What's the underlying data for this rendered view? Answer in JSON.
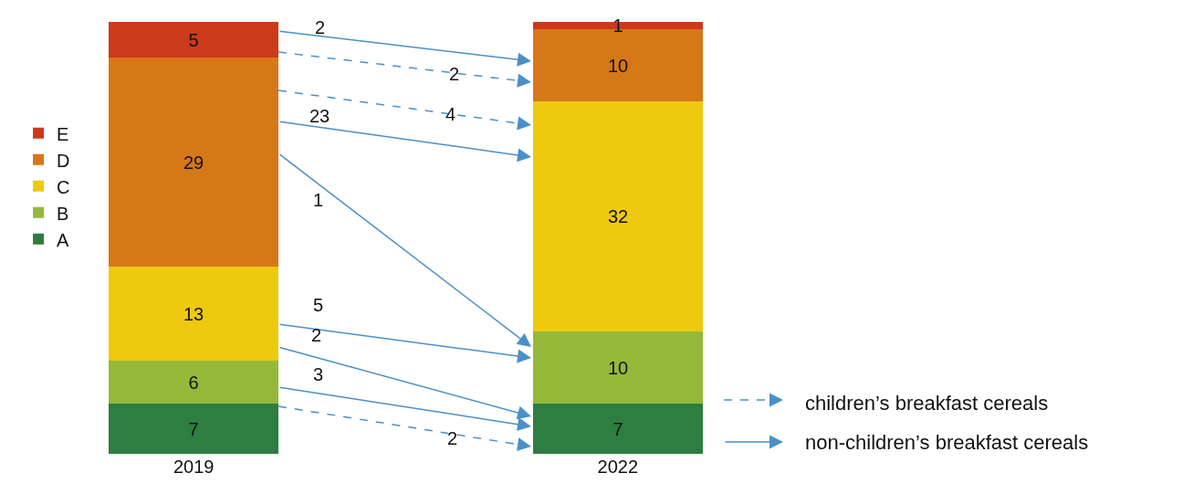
{
  "chart_data": {
    "type": "bar",
    "stacked": true,
    "data_labels": true,
    "legend": "left",
    "tick_labels": "x",
    "ylim": [
      0,
      60
    ],
    "categories": [
      "2019",
      "2022"
    ],
    "series": [
      {
        "name": "A",
        "color": "#2e7d41",
        "values": [
          7,
          7
        ]
      },
      {
        "name": "B",
        "color": "#95b83a",
        "values": [
          6,
          10
        ]
      },
      {
        "name": "C",
        "color": "#eec90f",
        "values": [
          13,
          32
        ]
      },
      {
        "name": "D",
        "color": "#d67818",
        "values": [
          29,
          10
        ]
      },
      {
        "name": "E",
        "color": "#cc3a1c",
        "values": [
          5,
          1
        ]
      }
    ],
    "annotations": [
      "2",
      "2",
      "4",
      "23",
      "1",
      "5",
      "2",
      "3",
      "2",
      "children’s breakfast cereals",
      "non-children’s breakfast cereals"
    ]
  }
}
